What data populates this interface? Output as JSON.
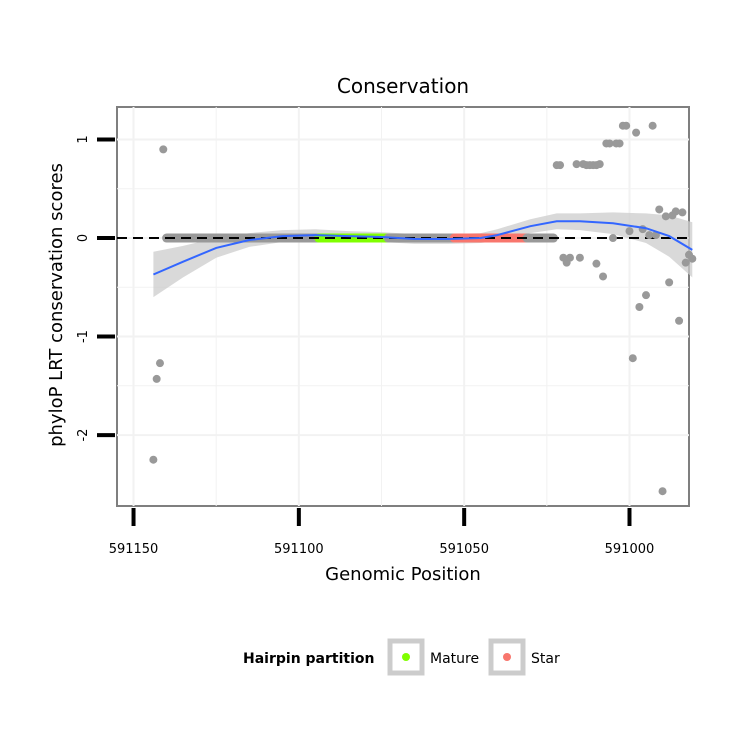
{
  "chart_data": {
    "type": "scatter",
    "title": "Conservation",
    "xlabel": "Genomic Position",
    "ylabel": "phyloP LRT conservation scores",
    "x_reversed": true,
    "xlim": [
      591155,
      590982
    ],
    "ylim": [
      -2.72,
      1.33
    ],
    "x_ticks": [
      591150,
      591100,
      591050,
      591000
    ],
    "x_tick_labels": [
      "591150",
      "591100",
      "591050",
      "591000"
    ],
    "y_ticks": [
      1,
      0,
      -1,
      -2
    ],
    "y_tick_labels": [
      "1",
      "0",
      "-1",
      "-2"
    ],
    "reference_line": {
      "y": 0,
      "style": "dashed"
    },
    "grid": true,
    "legend": {
      "title": "Hairpin partition",
      "position": "bottom",
      "entries": [
        {
          "label": "Mature",
          "color": "#80ff00"
        },
        {
          "label": "Star",
          "color": "#f8766d"
        }
      ]
    },
    "colors": {
      "points": "#999999",
      "smooth_line": "#3366ff",
      "ribbon": "#cccccc",
      "panel_border": "#7f7f7f",
      "grid": "#f2f2f2"
    },
    "segments": [
      {
        "name": "flank-5p",
        "x_start": 591140,
        "x_end": 591094,
        "y": 0,
        "color": "#999999"
      },
      {
        "name": "mature",
        "x_start": 591094,
        "x_end": 591073,
        "y": 0,
        "color": "#80ff00"
      },
      {
        "name": "loop",
        "x_start": 591073,
        "x_end": 591053,
        "y": 0,
        "color": "#999999"
      },
      {
        "name": "star",
        "x_start": 591053,
        "x_end": 591031,
        "y": 0,
        "color": "#f8766d"
      },
      {
        "name": "flank-3p",
        "x_start": 591031,
        "x_end": 591023,
        "y": 0,
        "color": "#999999"
      }
    ],
    "points": [
      {
        "x": 591141,
        "y": 0.9
      },
      {
        "x": 591144,
        "y": -2.25
      },
      {
        "x": 591143,
        "y": -1.43
      },
      {
        "x": 591142,
        "y": -1.27
      },
      {
        "x": 591022,
        "y": 0.74
      },
      {
        "x": 591021,
        "y": 0.74
      },
      {
        "x": 591020,
        "y": -0.2
      },
      {
        "x": 591019,
        "y": -0.25
      },
      {
        "x": 591018,
        "y": -0.2
      },
      {
        "x": 591016,
        "y": 0.75
      },
      {
        "x": 591015,
        "y": -0.2
      },
      {
        "x": 591014,
        "y": 0.75
      },
      {
        "x": 591013,
        "y": 0.74
      },
      {
        "x": 591012,
        "y": 0.74
      },
      {
        "x": 591011,
        "y": 0.74
      },
      {
        "x": 591010,
        "y": 0.74
      },
      {
        "x": 591010,
        "y": -0.26
      },
      {
        "x": 591009,
        "y": 0.75
      },
      {
        "x": 591008,
        "y": -0.39
      },
      {
        "x": 591007,
        "y": 0.96
      },
      {
        "x": 591006,
        "y": 0.96
      },
      {
        "x": 591005,
        "y": 0.0
      },
      {
        "x": 591004,
        "y": 0.96
      },
      {
        "x": 591003,
        "y": 0.96
      },
      {
        "x": 591002,
        "y": 1.14
      },
      {
        "x": 591001,
        "y": 1.14
      },
      {
        "x": 591000,
        "y": 0.07
      },
      {
        "x": 590999,
        "y": -1.22
      },
      {
        "x": 590998,
        "y": 1.07
      },
      {
        "x": 590997,
        "y": -0.7
      },
      {
        "x": 590996,
        "y": 0.09
      },
      {
        "x": 590995,
        "y": -0.58
      },
      {
        "x": 590994,
        "y": 0.03
      },
      {
        "x": 590993,
        "y": 1.14
      },
      {
        "x": 590992,
        "y": 0.03
      },
      {
        "x": 590991,
        "y": 0.29
      },
      {
        "x": 590990,
        "y": -2.57
      },
      {
        "x": 590989,
        "y": 0.22
      },
      {
        "x": 590988,
        "y": -0.45
      },
      {
        "x": 590987,
        "y": 0.23
      },
      {
        "x": 590986,
        "y": 0.27
      },
      {
        "x": 590985,
        "y": -0.84
      },
      {
        "x": 590984,
        "y": 0.26
      },
      {
        "x": 590983,
        "y": -0.25
      },
      {
        "x": 590982,
        "y": -0.17
      },
      {
        "x": 590981,
        "y": -0.21
      }
    ],
    "smooth": [
      {
        "x": 591144,
        "y": -0.37,
        "lo": -0.6,
        "hi": -0.14
      },
      {
        "x": 591135,
        "y": -0.24,
        "lo": -0.4,
        "hi": -0.08
      },
      {
        "x": 591125,
        "y": -0.1,
        "lo": -0.2,
        "hi": 0.0
      },
      {
        "x": 591115,
        "y": -0.02,
        "lo": -0.09,
        "hi": 0.05
      },
      {
        "x": 591105,
        "y": 0.02,
        "lo": -0.04,
        "hi": 0.08
      },
      {
        "x": 591095,
        "y": 0.03,
        "lo": -0.03,
        "hi": 0.09
      },
      {
        "x": 591085,
        "y": 0.02,
        "lo": -0.03,
        "hi": 0.07
      },
      {
        "x": 591075,
        "y": 0.01,
        "lo": -0.04,
        "hi": 0.06
      },
      {
        "x": 591065,
        "y": -0.01,
        "lo": -0.06,
        "hi": 0.04
      },
      {
        "x": 591055,
        "y": -0.01,
        "lo": -0.06,
        "hi": 0.04
      },
      {
        "x": 591045,
        "y": 0.0,
        "lo": -0.05,
        "hi": 0.05
      },
      {
        "x": 591040,
        "y": 0.03,
        "lo": -0.03,
        "hi": 0.09
      },
      {
        "x": 591030,
        "y": 0.12,
        "lo": 0.05,
        "hi": 0.19
      },
      {
        "x": 591022,
        "y": 0.17,
        "lo": 0.09,
        "hi": 0.25
      },
      {
        "x": 591015,
        "y": 0.17,
        "lo": 0.08,
        "hi": 0.25
      },
      {
        "x": 591005,
        "y": 0.15,
        "lo": 0.04,
        "hi": 0.26
      },
      {
        "x": 590995,
        "y": 0.1,
        "lo": -0.05,
        "hi": 0.25
      },
      {
        "x": 590988,
        "y": 0.02,
        "lo": -0.19,
        "hi": 0.23
      },
      {
        "x": 590981,
        "y": -0.12,
        "lo": -0.4,
        "hi": 0.16
      }
    ]
  }
}
